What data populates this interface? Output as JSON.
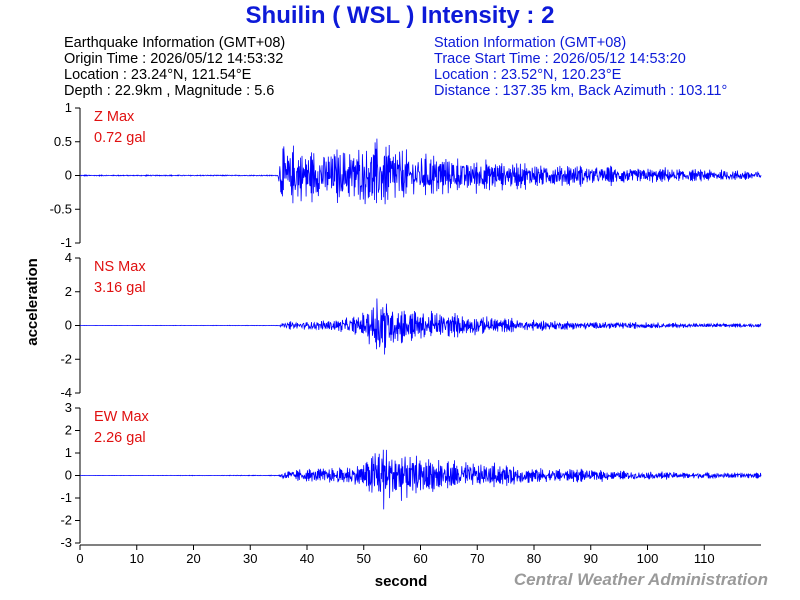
{
  "title": "Shuilin ( WSL ) Intensity : 2",
  "earthquake": {
    "heading": "Earthquake Information  (GMT+08)",
    "origin_time": "Origin Time : 2026/05/12 14:53:32",
    "location": "Location : 23.24°N, 121.54°E",
    "depth_mag": "Depth : 22.9km , Magnitude : 5.6"
  },
  "station": {
    "heading": "Station Information  (GMT+08)",
    "trace_start": "Trace Start Time : 2026/05/12 14:53:20",
    "location": "Location : 23.52°N, 120.23°E",
    "distance": "Distance : 137.35 km, Back Azimuth : 103.11°"
  },
  "credit": "Central Weather Administration",
  "colors": {
    "trace": "#0000ff",
    "title": "#0d1ad8",
    "max_label": "#e01010",
    "credit": "#9a9a9a"
  },
  "chart_data": {
    "type": "line",
    "xlabel": "second",
    "ylabel": "acceleration",
    "xlim": [
      0,
      120
    ],
    "xticks": [
      0,
      10,
      20,
      30,
      40,
      50,
      60,
      70,
      80,
      90,
      100,
      110
    ],
    "grid": false,
    "panels": [
      {
        "name": "Z",
        "max_label": "Z Max",
        "max_value": "0.72 gal",
        "ylim": [
          -1,
          1
        ],
        "yticks": [
          "1",
          "0.5",
          "0",
          "-0.5",
          "-1"
        ],
        "ytick_values": [
          1,
          0.5,
          0,
          -0.5,
          -1
        ],
        "envelope": [
          [
            0,
            0.01
          ],
          [
            34.9,
            0.01
          ],
          [
            35.3,
            0.6
          ],
          [
            40,
            0.45
          ],
          [
            45,
            0.5
          ],
          [
            50,
            0.55
          ],
          [
            53,
            0.72
          ],
          [
            58,
            0.45
          ],
          [
            65,
            0.35
          ],
          [
            75,
            0.25
          ],
          [
            90,
            0.18
          ],
          [
            105,
            0.12
          ],
          [
            120,
            0.1
          ]
        ]
      },
      {
        "name": "NS",
        "max_label": "NS Max",
        "max_value": "3.16 gal",
        "ylim": [
          -4,
          4
        ],
        "yticks": [
          "4",
          "2",
          "0",
          "-2",
          "-4"
        ],
        "ytick_values": [
          4,
          2,
          0,
          -2,
          -4
        ],
        "envelope": [
          [
            0,
            0.005
          ],
          [
            35,
            0.02
          ],
          [
            36,
            0.25
          ],
          [
            45,
            0.45
          ],
          [
            50,
            0.8
          ],
          [
            52,
            2.2
          ],
          [
            52.8,
            3.16
          ],
          [
            55,
            1.6
          ],
          [
            60,
            1.1
          ],
          [
            70,
            0.7
          ],
          [
            80,
            0.4
          ],
          [
            95,
            0.25
          ],
          [
            110,
            0.15
          ],
          [
            120,
            0.12
          ]
        ]
      },
      {
        "name": "EW",
        "max_label": "EW Max",
        "max_value": "2.26 gal",
        "ylim": [
          -3,
          3
        ],
        "yticks": [
          "3",
          "2",
          "1",
          "0",
          "-1",
          "-2",
          "-3"
        ],
        "ytick_values": [
          3,
          2,
          1,
          0,
          -1,
          -2,
          -3
        ],
        "envelope": [
          [
            0,
            0.005
          ],
          [
            35,
            0.02
          ],
          [
            36,
            0.3
          ],
          [
            45,
            0.45
          ],
          [
            50,
            0.7
          ],
          [
            52,
            1.6
          ],
          [
            52.8,
            2.26
          ],
          [
            55,
            1.4
          ],
          [
            60,
            1.0
          ],
          [
            70,
            0.7
          ],
          [
            80,
            0.45
          ],
          [
            95,
            0.25
          ],
          [
            110,
            0.18
          ],
          [
            120,
            0.15
          ]
        ]
      }
    ]
  }
}
